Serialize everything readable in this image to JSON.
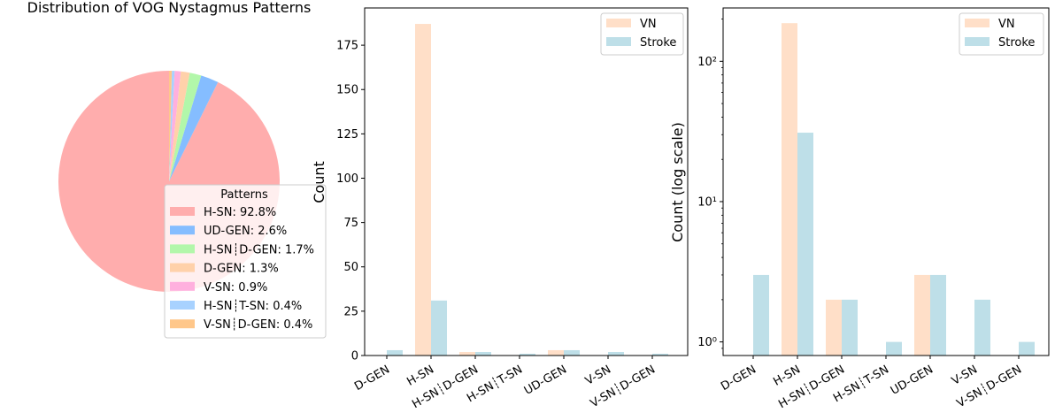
{
  "chart_data": [
    {
      "type": "pie",
      "title": "Distribution of VOG Nystagmus Patterns",
      "legend_title": "Patterns",
      "legend_position": "lower-right",
      "slices": [
        {
          "label": "H-SN",
          "pct_label": "H-SN: 92.8%",
          "value": 92.8,
          "color": "#ffadad"
        },
        {
          "label": "UD-GEN",
          "pct_label": "UD-GEN: 2.6%",
          "value": 2.6,
          "color": "#85bdff"
        },
        {
          "label": "H-SN┊D-GEN",
          "pct_label": "H-SN┊D-GEN: 1.7%",
          "value": 1.7,
          "color": "#b2f7aa"
        },
        {
          "label": "D-GEN",
          "pct_label": "D-GEN: 1.3%",
          "value": 1.3,
          "color": "#ffd1aa"
        },
        {
          "label": "V-SN",
          "pct_label": "V-SN: 0.9%",
          "value": 0.9,
          "color": "#ffb0de"
        },
        {
          "label": "H-SN┊T-SN",
          "pct_label": "H-SN┊T-SN: 0.4%",
          "value": 0.4,
          "color": "#a8d2ff"
        },
        {
          "label": "V-SN┊D-GEN",
          "pct_label": "V-SN┊D-GEN: 0.4%",
          "value": 0.4,
          "color": "#ffc78a"
        }
      ]
    },
    {
      "type": "bar",
      "ylabel": "Count",
      "scale": "linear",
      "ylim": [
        0,
        196
      ],
      "yticks": [
        0,
        25,
        50,
        75,
        100,
        125,
        150,
        175
      ],
      "legend_position": "top-right",
      "categories": [
        "D-GEN",
        "H-SN",
        "H-SN┊D-GEN",
        "H-SN┊T-SN",
        "UD-GEN",
        "V-SN",
        "V-SN┊D-GEN"
      ],
      "series": [
        {
          "name": "VN",
          "color": "#ffdfc8",
          "values": [
            0,
            187,
            2,
            0,
            3,
            0,
            0
          ]
        },
        {
          "name": "Stroke",
          "color": "#bedfe8",
          "values": [
            3,
            31,
            2,
            1,
            3,
            2,
            1
          ]
        }
      ]
    },
    {
      "type": "bar",
      "ylabel": "Count (log scale)",
      "scale": "log",
      "ylim": [
        0.8,
        240
      ],
      "yticks": [
        1,
        10,
        100
      ],
      "ytick_labels": [
        "10⁰",
        "10¹",
        "10²"
      ],
      "legend_position": "top-right",
      "categories": [
        "D-GEN",
        "H-SN",
        "H-SN┊D-GEN",
        "H-SN┊T-SN",
        "UD-GEN",
        "V-SN",
        "V-SN┊D-GEN"
      ],
      "series": [
        {
          "name": "VN",
          "color": "#ffdfc8",
          "values": [
            0,
            187,
            2,
            0,
            3,
            0,
            0
          ]
        },
        {
          "name": "Stroke",
          "color": "#bedfe8",
          "values": [
            3,
            31,
            2,
            1,
            3,
            2,
            1
          ]
        }
      ]
    }
  ]
}
